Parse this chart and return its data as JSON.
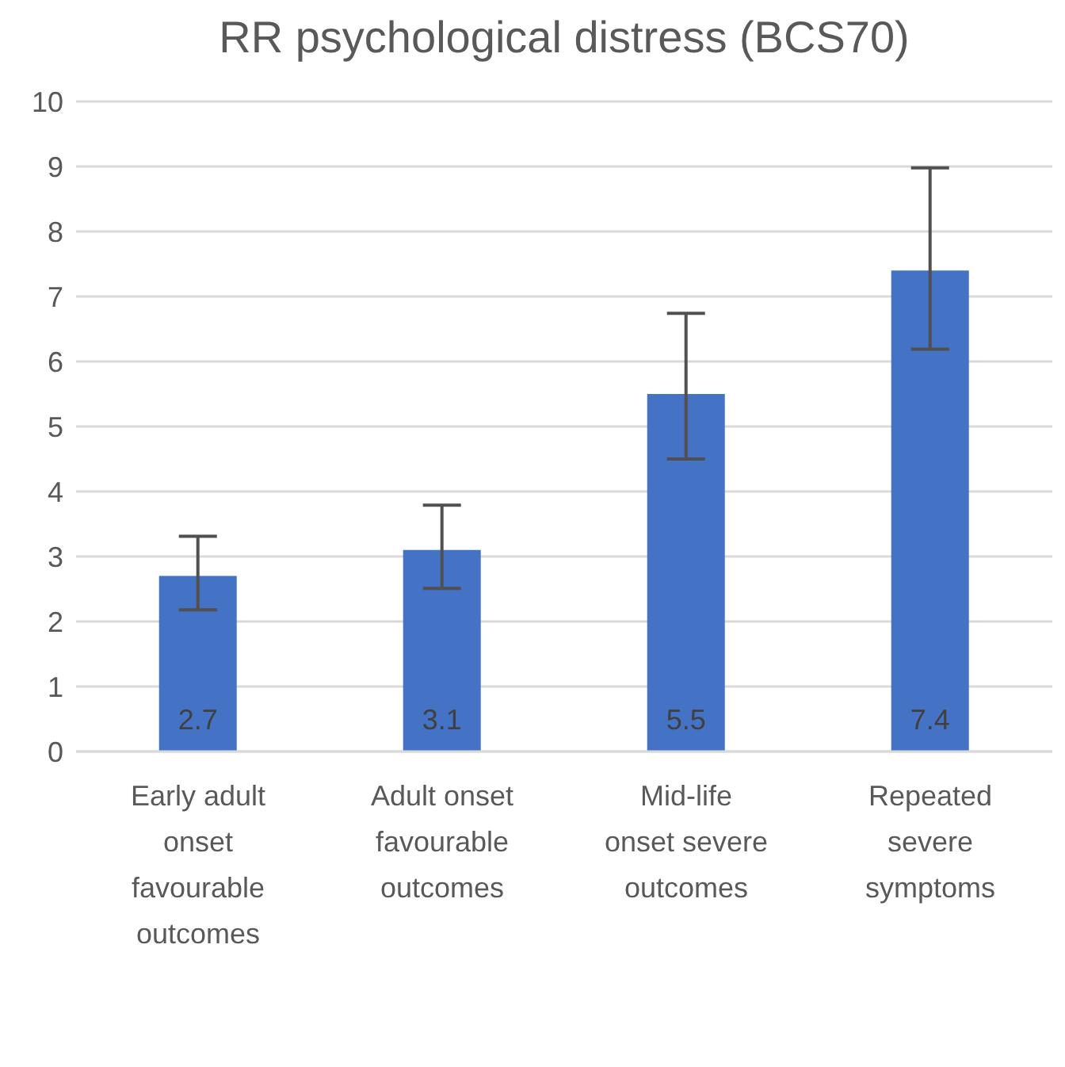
{
  "chart_data": {
    "type": "bar",
    "title": "RR psychological distress (BCS70)",
    "categories": [
      "Early adult onset favourable outcomes",
      "Adult onset favourable outcomes",
      "Mid-life onset severe outcomes",
      "Repeated severe symptoms"
    ],
    "values": [
      2.7,
      3.1,
      5.5,
      7.4
    ],
    "errors": [
      [
        2.18,
        3.31
      ],
      [
        2.51,
        3.79
      ],
      [
        4.5,
        6.74
      ],
      [
        6.19,
        8.98
      ]
    ],
    "color": "#4472c4",
    "ylim": [
      0,
      10
    ],
    "yticks": [
      0,
      1,
      2,
      3,
      4,
      5,
      6,
      7,
      8,
      9,
      10
    ],
    "grid": "y",
    "data_labels": true,
    "legend": false
  }
}
